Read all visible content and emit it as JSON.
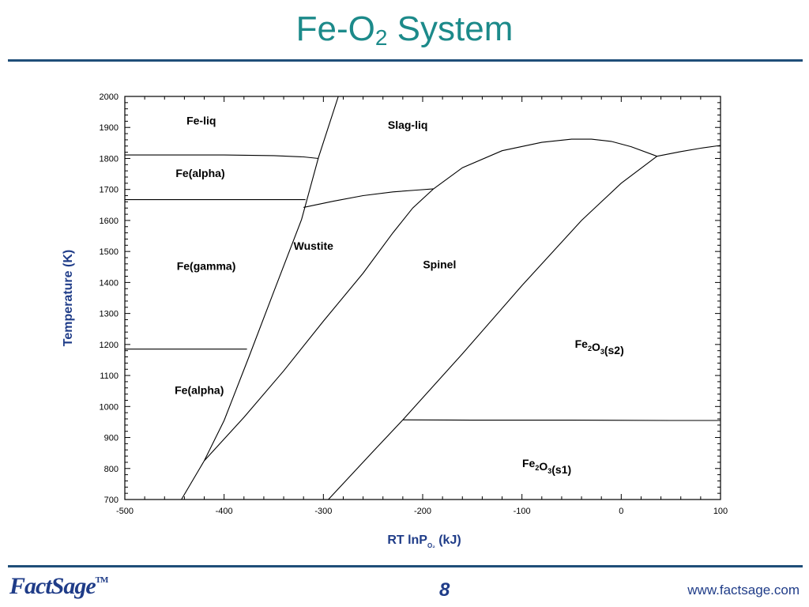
{
  "slide": {
    "title_main": "Fe-O",
    "title_sub": "2",
    "title_end": " System",
    "page_number": "8",
    "footer_url": "www.factsage.com",
    "logo_text": "FactSage",
    "logo_tm": "TM",
    "colors": {
      "title": "#1c8a8a",
      "rule": "#1f4e79",
      "axis_title": "#1f3c88"
    }
  },
  "chart_data": {
    "type": "line",
    "title": "",
    "xlabel_main": "RT lnP",
    "xlabel_sub": "O₂",
    "xlabel_end": " (kJ)",
    "ylabel": "Temperature (K)",
    "xlim": [
      -500,
      100
    ],
    "ylim": [
      700,
      2000
    ],
    "xticks": [
      -500,
      -400,
      -300,
      -200,
      -100,
      0,
      100
    ],
    "yticks": [
      700,
      800,
      900,
      1000,
      1100,
      1200,
      1300,
      1400,
      1500,
      1600,
      1700,
      1800,
      1900,
      2000
    ],
    "boundaries": [
      {
        "x": [
          -443,
          -420,
          -400,
          -375,
          -350,
          -322,
          -305,
          -285
        ],
        "y": [
          700,
          825,
          955,
          1160,
          1370,
          1603,
          1803,
          2000
        ]
      },
      {
        "x": [
          -500,
          -460,
          -400,
          -350,
          -320,
          -305
        ],
        "y": [
          1811,
          1811,
          1811,
          1809,
          1805,
          1800
        ]
      },
      {
        "x": [
          -500,
          -430,
          -350,
          -318
        ],
        "y": [
          1667,
          1667,
          1667,
          1667
        ]
      },
      {
        "x": [
          -500,
          -450,
          -400,
          -377
        ],
        "y": [
          1185,
          1185,
          1185,
          1185
        ]
      },
      {
        "x": [
          -320,
          -290,
          -260,
          -230,
          -206,
          -189
        ],
        "y": [
          1642,
          1662,
          1680,
          1692,
          1698,
          1702
        ]
      },
      {
        "x": [
          -420,
          -380,
          -340,
          -300,
          -260,
          -230,
          -210,
          -189
        ],
        "y": [
          825,
          965,
          1115,
          1275,
          1430,
          1560,
          1640,
          1702
        ]
      },
      {
        "x": [
          -189,
          -160,
          -120,
          -80,
          -50,
          -30,
          -10,
          10,
          36
        ],
        "y": [
          1702,
          1770,
          1825,
          1852,
          1862,
          1862,
          1855,
          1838,
          1807
        ]
      },
      {
        "x": [
          -295,
          -250,
          -220,
          -160,
          -100,
          -40,
          0,
          36
        ],
        "y": [
          700,
          855,
          957,
          1170,
          1390,
          1600,
          1720,
          1807
        ]
      },
      {
        "x": [
          -220,
          -150,
          -50,
          50,
          100
        ],
        "y": [
          957,
          956,
          956,
          955,
          955
        ]
      },
      {
        "x": [
          36,
          60,
          80,
          100
        ],
        "y": [
          1807,
          1822,
          1833,
          1842
        ]
      }
    ],
    "regions": [
      {
        "label": "Fe-liq",
        "x": -423,
        "y": 1910
      },
      {
        "label": "Slag-liq",
        "x": -215,
        "y": 1895
      },
      {
        "label": "Fe(alpha)",
        "x": -424,
        "y": 1740
      },
      {
        "label": "Wustite",
        "x": -310,
        "y": 1505
      },
      {
        "label": "Spinel",
        "x": -183,
        "y": 1445
      },
      {
        "label": "Fe(gamma)",
        "x": -418,
        "y": 1440
      },
      {
        "label": "Fe₂O₃(s2)",
        "x": -22,
        "y": 1190
      },
      {
        "label": "Fe(alpha)",
        "x": -425,
        "y": 1040
      },
      {
        "label": "Fe₂O₃(s1)",
        "x": -75,
        "y": 805
      }
    ]
  }
}
